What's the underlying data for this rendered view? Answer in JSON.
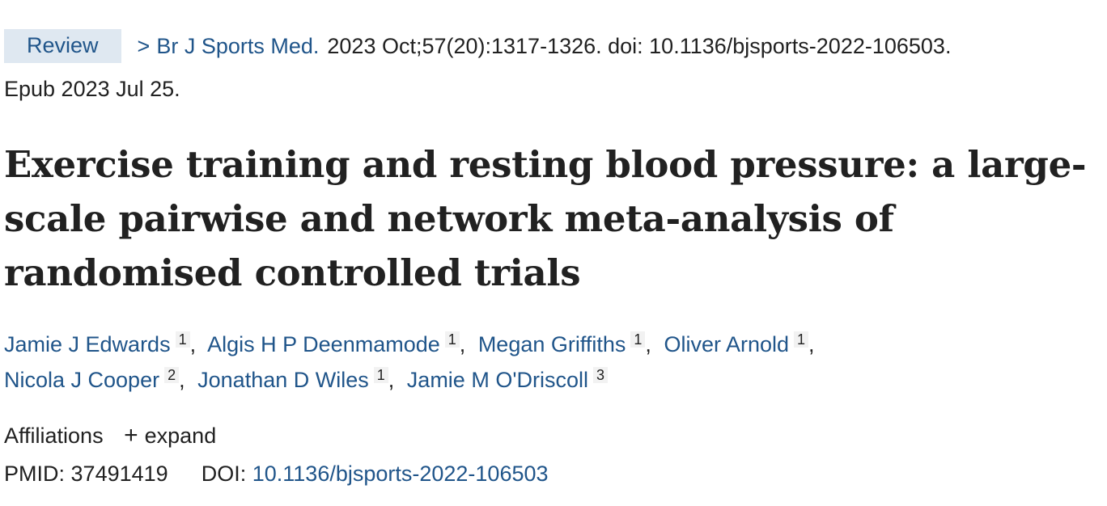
{
  "citation": {
    "badge": "Review",
    "chevron": ">",
    "journal": "Br J Sports Med.",
    "details": "2023 Oct;57(20):1317-1326. doi: 10.1136/bjsports-2022-106503.",
    "epub": "Epub 2023 Jul 25."
  },
  "title": "Exercise training and resting blood pressure: a large-scale pairwise and network meta-analysis of randomised controlled trials",
  "authors": [
    {
      "name": "Jamie J Edwards",
      "aff": "1"
    },
    {
      "name": "Algis H P Deenmamode",
      "aff": "1"
    },
    {
      "name": "Megan Griffiths",
      "aff": "1"
    },
    {
      "name": "Oliver Arnold",
      "aff": "1"
    },
    {
      "name": "Nicola J Cooper",
      "aff": "2"
    },
    {
      "name": "Jonathan D Wiles",
      "aff": "1"
    },
    {
      "name": "Jamie M O'Driscoll",
      "aff": "3"
    }
  ],
  "affiliations": {
    "label": "Affiliations",
    "expand_icon": "+",
    "expand_label": "expand"
  },
  "ids": {
    "pmid_label": "PMID:",
    "pmid": "37491419",
    "doi_label": "DOI:",
    "doi": "10.1136/bjsports-2022-106503"
  },
  "colors": {
    "link": "#20558a",
    "badge_bg": "#dfe8f1",
    "text": "#212121"
  }
}
